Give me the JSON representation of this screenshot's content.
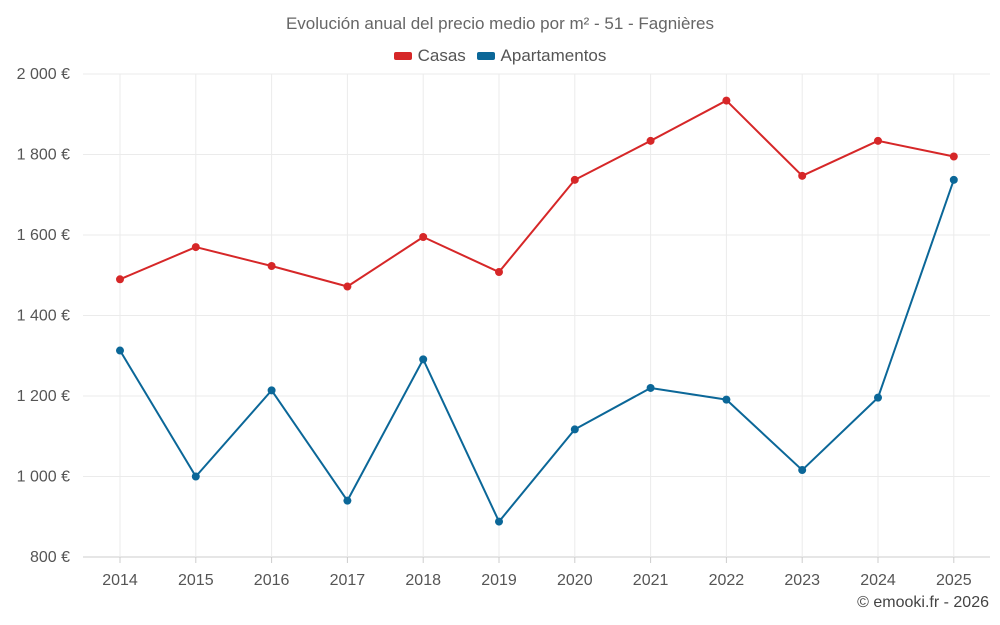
{
  "chart_data": {
    "type": "line",
    "title": "Evolución anual del precio medio por m² - 51 - Fagnières",
    "categories": [
      "2014",
      "2015",
      "2016",
      "2017",
      "2018",
      "2019",
      "2020",
      "2021",
      "2022",
      "2023",
      "2024",
      "2025"
    ],
    "series": [
      {
        "name": "Casas",
        "color": "#d62728",
        "values": [
          1490,
          1570,
          1523,
          1472,
          1595,
          1508,
          1737,
          1834,
          1934,
          1747,
          1834,
          1795
        ]
      },
      {
        "name": "Apartamentos",
        "color": "#0b6798",
        "values": [
          1313,
          1000,
          1214,
          940,
          1291,
          888,
          1117,
          1220,
          1191,
          1016,
          1196,
          1737
        ]
      }
    ],
    "ylim": [
      800,
      2000
    ],
    "yticks": [
      800,
      1000,
      1200,
      1400,
      1600,
      1800,
      2000
    ],
    "ytick_labels": [
      "800 €",
      "1 000 €",
      "1 200 €",
      "1 400 €",
      "1 600 €",
      "1 800 €",
      "2 000 €"
    ],
    "xlabel": "",
    "ylabel": "",
    "grid": true,
    "legend_position": "top-center"
  },
  "credit": "© emooki.fr - 2026"
}
